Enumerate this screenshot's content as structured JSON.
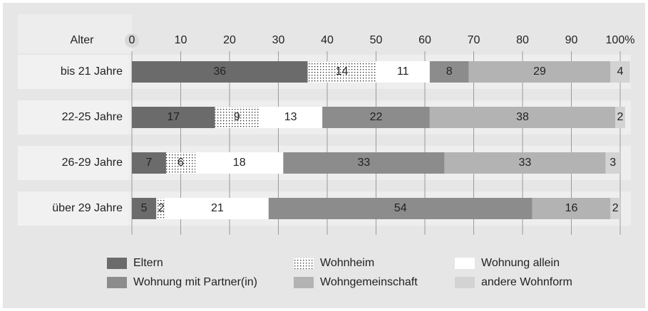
{
  "chart_data": {
    "type": "stacked-bar-horizontal",
    "axis_title": "Alter",
    "categories": [
      "bis 21 Jahre",
      "22-25 Jahre",
      "26-29 Jahre",
      "über 29 Jahre"
    ],
    "series": [
      {
        "name": "Eltern",
        "color": "#6b6b6b",
        "label_color": "#ffffff",
        "values": [
          36,
          17,
          7,
          5
        ]
      },
      {
        "name": "Wohnheim",
        "color": "#ffffff",
        "pattern": "dots",
        "label_color": "#222222",
        "values": [
          14,
          9,
          6,
          2
        ]
      },
      {
        "name": "Wohnung allein",
        "color": "#ffffff",
        "label_color": "#222222",
        "values": [
          11,
          13,
          18,
          21
        ]
      },
      {
        "name": "Wohnung mit Partner(in)",
        "color": "#8c8c8c",
        "label_color": "#ffffff",
        "values": [
          8,
          22,
          33,
          54
        ]
      },
      {
        "name": "Wohngemeinschaft",
        "color": "#b3b3b3",
        "label_color": "#222222",
        "values": [
          29,
          38,
          33,
          16
        ]
      },
      {
        "name": "andere Wohnform",
        "color": "#d3d3d3",
        "label_color": "#222222",
        "values": [
          4,
          2,
          3,
          2
        ]
      }
    ],
    "xlim": [
      0,
      100
    ],
    "xticks": [
      0,
      10,
      20,
      30,
      40,
      50,
      60,
      70,
      80,
      90,
      {
        "value": 100,
        "label": "100%"
      }
    ],
    "grid": true
  }
}
